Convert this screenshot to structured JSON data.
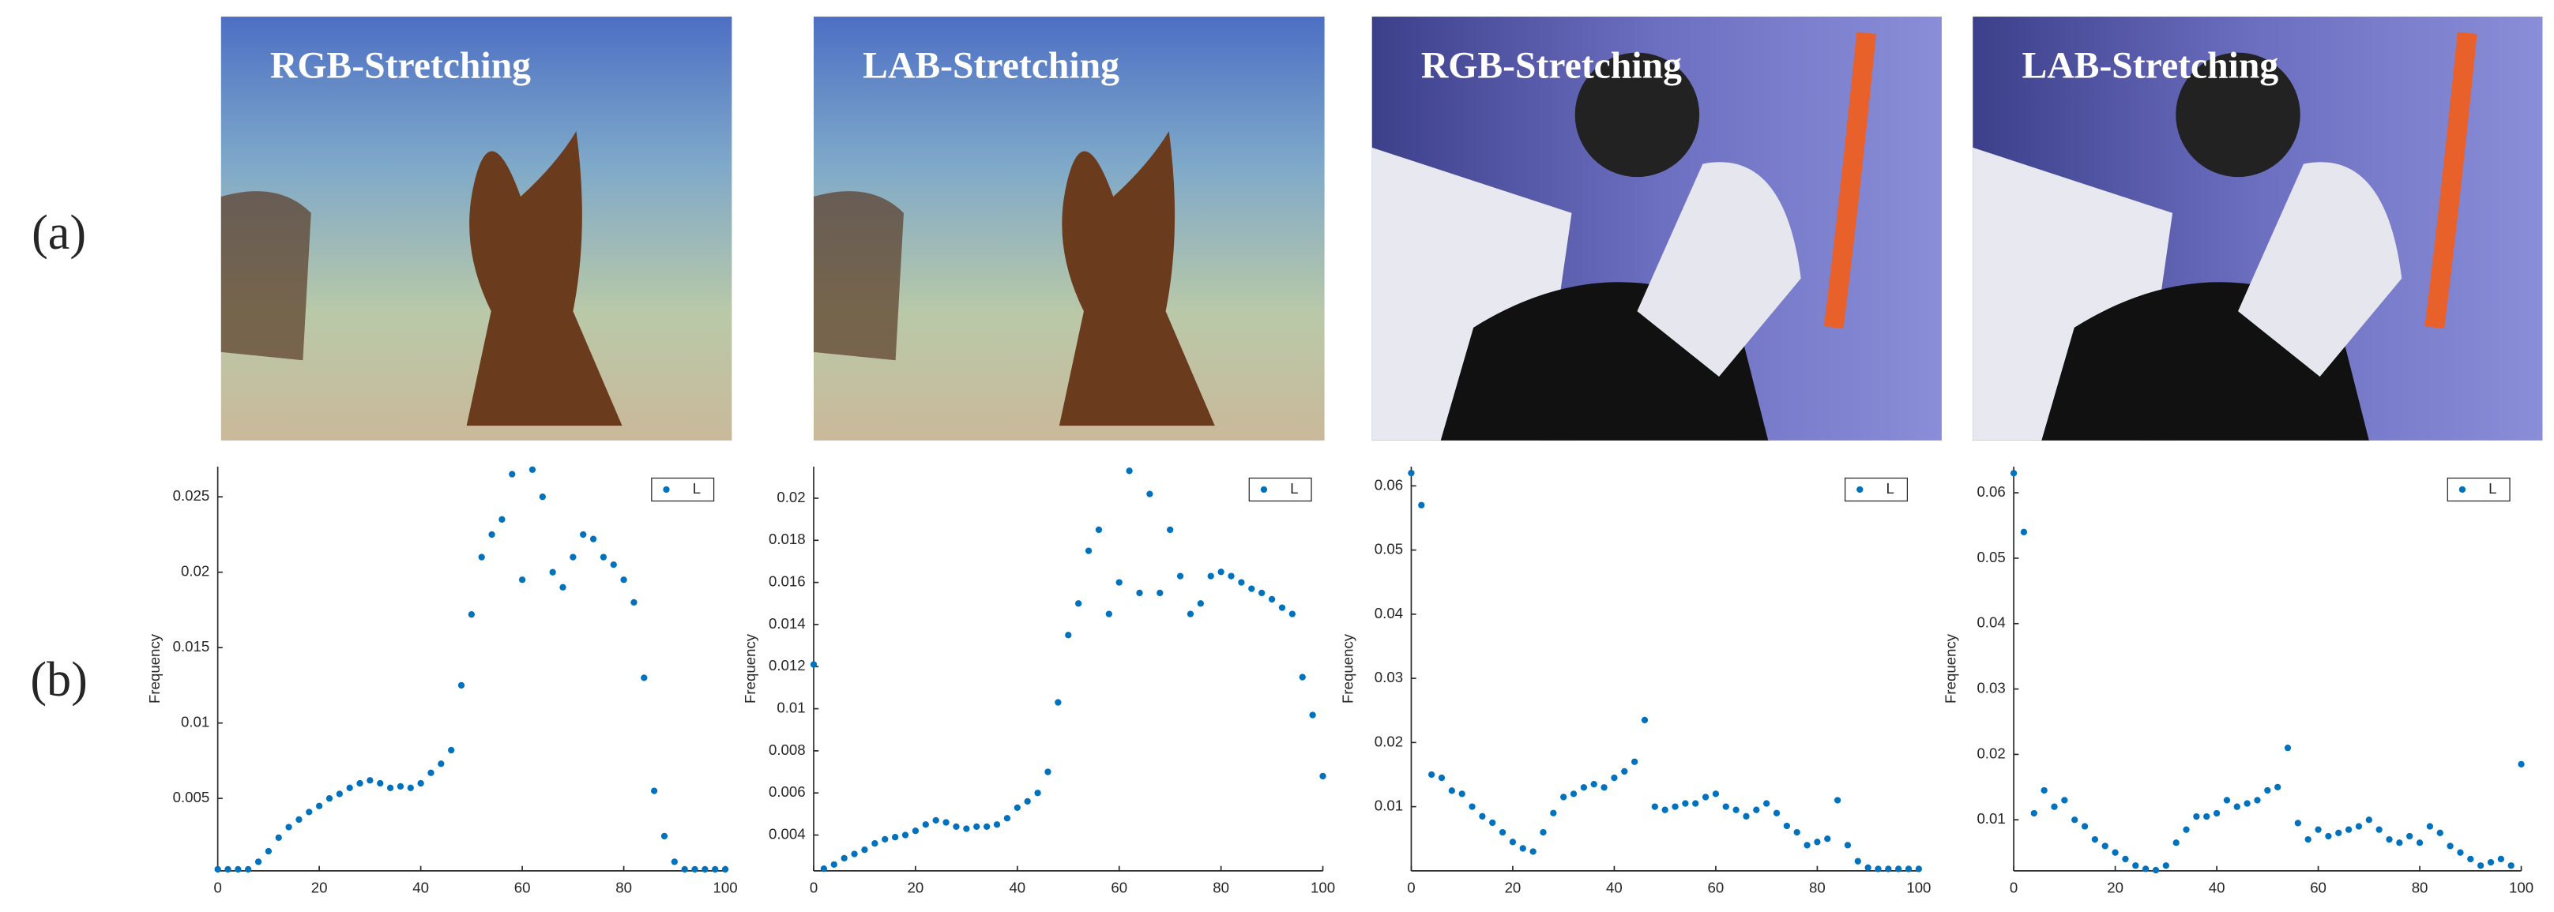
{
  "labels": {
    "a": "(a)",
    "b": "(b)"
  },
  "images": [
    {
      "title": "RGB-Stretching"
    },
    {
      "title": "LAB-Stretching"
    },
    {
      "title": "RGB-Stretching"
    },
    {
      "title": "LAB-Stretching"
    }
  ],
  "chart_data": [
    {
      "type": "scatter",
      "ylabel": "Frequency",
      "xlim": [
        0,
        100
      ],
      "xticks": [
        0,
        20,
        40,
        60,
        80,
        100
      ],
      "ylim": [
        0.0002,
        0.027
      ],
      "yticks": [
        0.005,
        0.01,
        0.015,
        0.02,
        0.025
      ],
      "legend": "top-right",
      "x": [
        0,
        2,
        4,
        6,
        8,
        10,
        12,
        14,
        16,
        18,
        20,
        22,
        24,
        26,
        28,
        30,
        32,
        34,
        36,
        38,
        40,
        42,
        44,
        46,
        48,
        50,
        52,
        54,
        56,
        58,
        60,
        62,
        64,
        66,
        68,
        70,
        72,
        74,
        76,
        78,
        80,
        82,
        84,
        86,
        88,
        90,
        92,
        94,
        96,
        98,
        100
      ],
      "series": [
        {
          "name": "L",
          "color": "#0072bd",
          "values": [
            0.0003,
            0.0003,
            0.0003,
            0.0003,
            0.0008,
            0.0015,
            0.0024,
            0.0031,
            0.0036,
            0.0041,
            0.0045,
            0.005,
            0.0053,
            0.0057,
            0.006,
            0.0062,
            0.006,
            0.0057,
            0.0058,
            0.0057,
            0.006,
            0.0067,
            0.0073,
            0.0082,
            0.0125,
            0.0172,
            0.021,
            0.0225,
            0.0235,
            0.0265,
            0.0195,
            0.0268,
            0.025,
            0.02,
            0.019,
            0.021,
            0.0225,
            0.0222,
            0.021,
            0.0205,
            0.0195,
            0.018,
            0.013,
            0.0055,
            0.0025,
            0.0008,
            0.0003,
            0.0003,
            0.0003,
            0.0003,
            0.0003
          ]
        }
      ]
    },
    {
      "type": "scatter",
      "ylabel": "Frequency",
      "xlim": [
        0,
        100
      ],
      "xticks": [
        0,
        20,
        40,
        60,
        80,
        100
      ],
      "ylim": [
        0.0023,
        0.0215
      ],
      "yticks": [
        0.004,
        0.006,
        0.008,
        0.01,
        0.012,
        0.014,
        0.016,
        0.018,
        0.02
      ],
      "legend": "top-right",
      "x": [
        0,
        2,
        4,
        6,
        8,
        10,
        12,
        14,
        16,
        18,
        20,
        22,
        24,
        26,
        28,
        30,
        32,
        34,
        36,
        38,
        40,
        42,
        44,
        46,
        48,
        50,
        52,
        54,
        56,
        58,
        60,
        62,
        64,
        66,
        68,
        70,
        72,
        74,
        76,
        78,
        80,
        82,
        84,
        86,
        88,
        90,
        92,
        94,
        96,
        98,
        100
      ],
      "series": [
        {
          "name": "L",
          "color": "#0072bd",
          "values": [
            0.0121,
            0.0024,
            0.0026,
            0.0029,
            0.0031,
            0.0033,
            0.0036,
            0.0038,
            0.0039,
            0.004,
            0.0042,
            0.0045,
            0.0047,
            0.0046,
            0.0044,
            0.0043,
            0.0044,
            0.0044,
            0.0045,
            0.0048,
            0.0053,
            0.0056,
            0.006,
            0.007,
            0.0103,
            0.0135,
            0.015,
            0.0175,
            0.0185,
            0.0145,
            0.016,
            0.0213,
            0.0155,
            0.0202,
            0.0155,
            0.0185,
            0.0163,
            0.0145,
            0.015,
            0.0163,
            0.0165,
            0.0163,
            0.016,
            0.0157,
            0.0155,
            0.0152,
            0.0148,
            0.0145,
            0.0115,
            0.0097,
            0.0068
          ]
        }
      ]
    },
    {
      "type": "scatter",
      "ylabel": "Frequency",
      "xlim": [
        0,
        100
      ],
      "xticks": [
        0,
        20,
        40,
        60,
        80,
        100
      ],
      "ylim": [
        0,
        0.063
      ],
      "yticks": [
        0.01,
        0.02,
        0.03,
        0.04,
        0.05,
        0.06
      ],
      "legend": "top-right",
      "x": [
        0,
        2,
        4,
        6,
        8,
        10,
        12,
        14,
        16,
        18,
        20,
        22,
        24,
        26,
        28,
        30,
        32,
        34,
        36,
        38,
        40,
        42,
        44,
        46,
        48,
        50,
        52,
        54,
        56,
        58,
        60,
        62,
        64,
        66,
        68,
        70,
        72,
        74,
        76,
        78,
        80,
        82,
        84,
        86,
        88,
        90,
        92,
        94,
        96,
        98,
        100
      ],
      "series": [
        {
          "name": "L",
          "color": "#0072bd",
          "values": [
            0.062,
            0.057,
            0.015,
            0.0145,
            0.0125,
            0.012,
            0.01,
            0.0085,
            0.0075,
            0.006,
            0.0045,
            0.0035,
            0.003,
            0.006,
            0.009,
            0.0115,
            0.012,
            0.013,
            0.0135,
            0.013,
            0.0145,
            0.0155,
            0.017,
            0.0235,
            0.01,
            0.0095,
            0.01,
            0.0105,
            0.0105,
            0.0115,
            0.012,
            0.01,
            0.0095,
            0.0085,
            0.0095,
            0.0105,
            0.009,
            0.007,
            0.006,
            0.004,
            0.0045,
            0.005,
            0.011,
            0.004,
            0.0015,
            0.0005,
            0.0003,
            0.0003,
            0.0003,
            0.0003,
            0.0003
          ]
        }
      ]
    },
    {
      "type": "scatter",
      "ylabel": "Frequency",
      "xlim": [
        0,
        100
      ],
      "xticks": [
        0,
        20,
        40,
        60,
        80,
        100
      ],
      "ylim": [
        0.0022,
        0.064
      ],
      "yticks": [
        0.01,
        0.02,
        0.03,
        0.04,
        0.05,
        0.06
      ],
      "legend": "top-right",
      "x": [
        0,
        2,
        4,
        6,
        8,
        10,
        12,
        14,
        16,
        18,
        20,
        22,
        24,
        26,
        28,
        30,
        32,
        34,
        36,
        38,
        40,
        42,
        44,
        46,
        48,
        50,
        52,
        54,
        56,
        58,
        60,
        62,
        64,
        66,
        68,
        70,
        72,
        74,
        76,
        78,
        80,
        82,
        84,
        86,
        88,
        90,
        92,
        94,
        96,
        98,
        100
      ],
      "series": [
        {
          "name": "L",
          "color": "#0072bd",
          "values": [
            0.063,
            0.054,
            0.011,
            0.0145,
            0.012,
            0.013,
            0.01,
            0.009,
            0.007,
            0.006,
            0.005,
            0.004,
            0.003,
            0.0025,
            0.0023,
            0.003,
            0.0065,
            0.0085,
            0.0105,
            0.0105,
            0.011,
            0.013,
            0.012,
            0.0125,
            0.013,
            0.0145,
            0.015,
            0.021,
            0.0095,
            0.007,
            0.0085,
            0.0075,
            0.008,
            0.0085,
            0.009,
            0.01,
            0.0085,
            0.007,
            0.0065,
            0.0075,
            0.0065,
            0.009,
            0.008,
            0.006,
            0.005,
            0.004,
            0.003,
            0.0035,
            0.004,
            0.003,
            0.0185
          ]
        }
      ]
    }
  ]
}
